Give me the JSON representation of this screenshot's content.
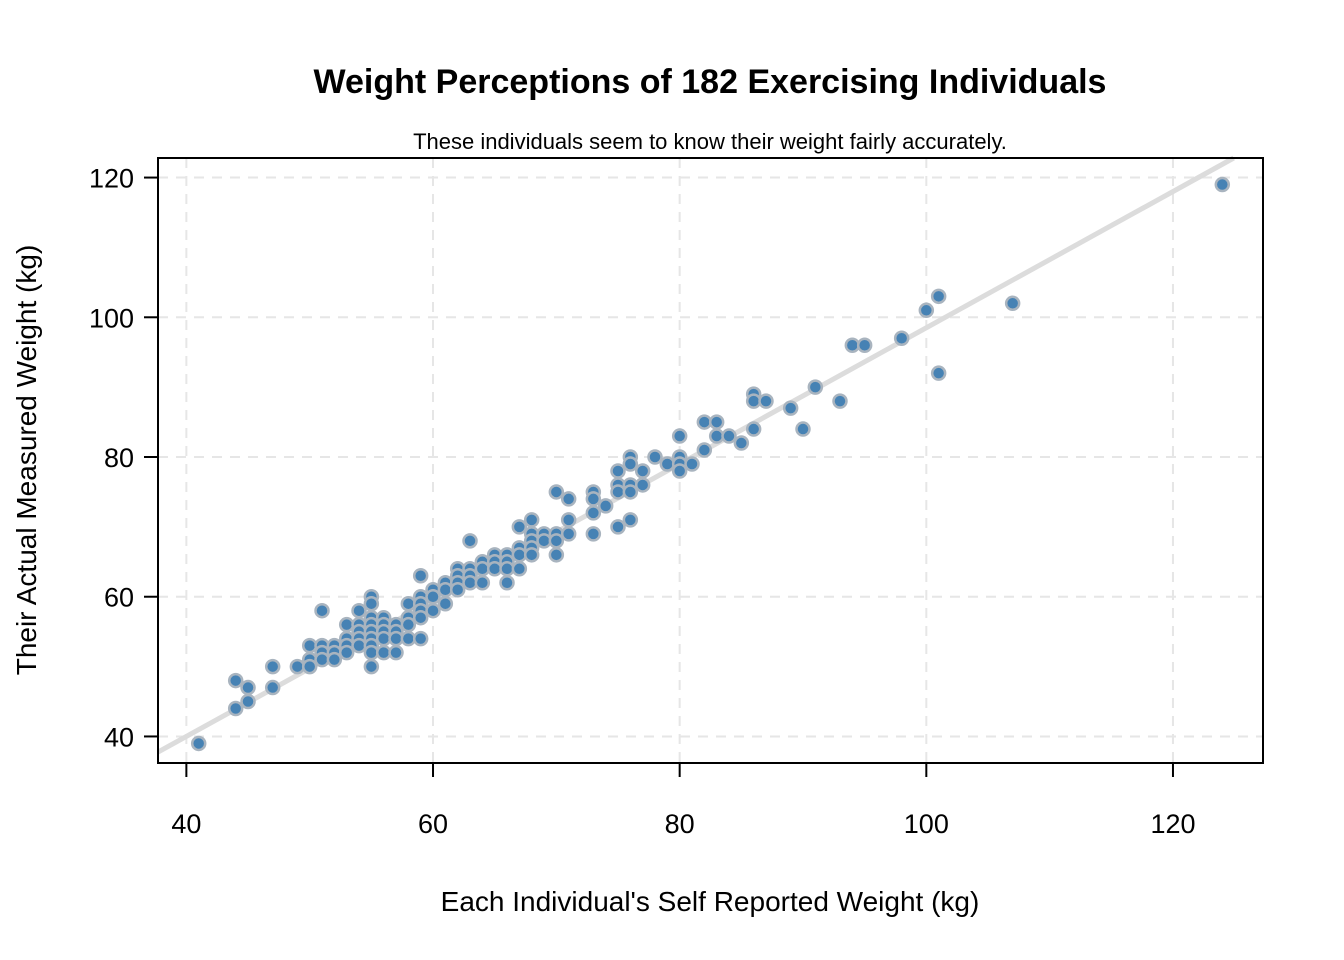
{
  "chart_data": {
    "type": "scatter",
    "title": "Weight Perceptions of 182 Exercising Individuals",
    "subtitle": "These individuals seem to know their weight fairly accurately.",
    "xlabel": "Each Individual's Self Reported Weight (kg)",
    "ylabel": "Their Actual Measured Weight (kg)",
    "xlim": [
      37.7,
      127.3
    ],
    "ylim": [
      36.2,
      122.8
    ],
    "xticks": [
      40,
      60,
      80,
      100,
      120
    ],
    "yticks": [
      40,
      60,
      80,
      100,
      120
    ],
    "grid": true,
    "colors": {
      "point_fill": "#4682b4",
      "point_edge": "#a9b4bf",
      "fit_line": "#dcdcdc",
      "grid": "#e6e6e6"
    },
    "fit_line": {
      "slope": 0.975,
      "intercept": 1.0
    },
    "points": [
      [
        41,
        39
      ],
      [
        44,
        48
      ],
      [
        44,
        44
      ],
      [
        45,
        47
      ],
      [
        45,
        45
      ],
      [
        47,
        50
      ],
      [
        47,
        47
      ],
      [
        49,
        50
      ],
      [
        50,
        53
      ],
      [
        50,
        51
      ],
      [
        50,
        50
      ],
      [
        51,
        58
      ],
      [
        51,
        53
      ],
      [
        51,
        52
      ],
      [
        51,
        51
      ],
      [
        52,
        53
      ],
      [
        52,
        52
      ],
      [
        52,
        51
      ],
      [
        53,
        56
      ],
      [
        53,
        54
      ],
      [
        53,
        53
      ],
      [
        53,
        52
      ],
      [
        54,
        58
      ],
      [
        54,
        56
      ],
      [
        54,
        55
      ],
      [
        54,
        54
      ],
      [
        54,
        53
      ],
      [
        55,
        60
      ],
      [
        55,
        59
      ],
      [
        55,
        57
      ],
      [
        55,
        56
      ],
      [
        55,
        55
      ],
      [
        55,
        54
      ],
      [
        55,
        53
      ],
      [
        55,
        52
      ],
      [
        55,
        50
      ],
      [
        56,
        57
      ],
      [
        56,
        56
      ],
      [
        56,
        55
      ],
      [
        56,
        54
      ],
      [
        56,
        52
      ],
      [
        57,
        56
      ],
      [
        57,
        55
      ],
      [
        57,
        54
      ],
      [
        57,
        52
      ],
      [
        58,
        59
      ],
      [
        58,
        57
      ],
      [
        58,
        56
      ],
      [
        58,
        54
      ],
      [
        59,
        63
      ],
      [
        59,
        60
      ],
      [
        59,
        59
      ],
      [
        59,
        58
      ],
      [
        59,
        57
      ],
      [
        59,
        54
      ],
      [
        60,
        61
      ],
      [
        60,
        60
      ],
      [
        60,
        58
      ],
      [
        61,
        62
      ],
      [
        61,
        61
      ],
      [
        61,
        59
      ],
      [
        62,
        64
      ],
      [
        62,
        63
      ],
      [
        62,
        62
      ],
      [
        62,
        61
      ],
      [
        63,
        68
      ],
      [
        63,
        64
      ],
      [
        63,
        63
      ],
      [
        63,
        62
      ],
      [
        64,
        65
      ],
      [
        64,
        64
      ],
      [
        64,
        62
      ],
      [
        65,
        66
      ],
      [
        65,
        65
      ],
      [
        65,
        64
      ],
      [
        66,
        66
      ],
      [
        66,
        65
      ],
      [
        66,
        64
      ],
      [
        66,
        62
      ],
      [
        67,
        70
      ],
      [
        67,
        67
      ],
      [
        67,
        66
      ],
      [
        67,
        64
      ],
      [
        68,
        71
      ],
      [
        68,
        69
      ],
      [
        68,
        68
      ],
      [
        68,
        67
      ],
      [
        68,
        66
      ],
      [
        69,
        69
      ],
      [
        69,
        68
      ],
      [
        70,
        75
      ],
      [
        70,
        69
      ],
      [
        70,
        68
      ],
      [
        70,
        66
      ],
      [
        71,
        74
      ],
      [
        71,
        71
      ],
      [
        71,
        69
      ],
      [
        73,
        75
      ],
      [
        73,
        74
      ],
      [
        73,
        72
      ],
      [
        73,
        69
      ],
      [
        74,
        73
      ],
      [
        75,
        78
      ],
      [
        75,
        76
      ],
      [
        75,
        75
      ],
      [
        75,
        70
      ],
      [
        76,
        80
      ],
      [
        76,
        79
      ],
      [
        76,
        76
      ],
      [
        76,
        75
      ],
      [
        76,
        71
      ],
      [
        77,
        78
      ],
      [
        77,
        76
      ],
      [
        78,
        80
      ],
      [
        79,
        79
      ],
      [
        80,
        83
      ],
      [
        80,
        80
      ],
      [
        80,
        79
      ],
      [
        80,
        78
      ],
      [
        81,
        79
      ],
      [
        82,
        85
      ],
      [
        82,
        81
      ],
      [
        83,
        85
      ],
      [
        83,
        83
      ],
      [
        84,
        83
      ],
      [
        85,
        82
      ],
      [
        86,
        89
      ],
      [
        86,
        88
      ],
      [
        86,
        84
      ],
      [
        87,
        88
      ],
      [
        89,
        87
      ],
      [
        90,
        84
      ],
      [
        91,
        90
      ],
      [
        93,
        88
      ],
      [
        94,
        96
      ],
      [
        95,
        96
      ],
      [
        98,
        97
      ],
      [
        100,
        101
      ],
      [
        101,
        103
      ],
      [
        101,
        92
      ],
      [
        107,
        102
      ],
      [
        124,
        119
      ]
    ]
  }
}
